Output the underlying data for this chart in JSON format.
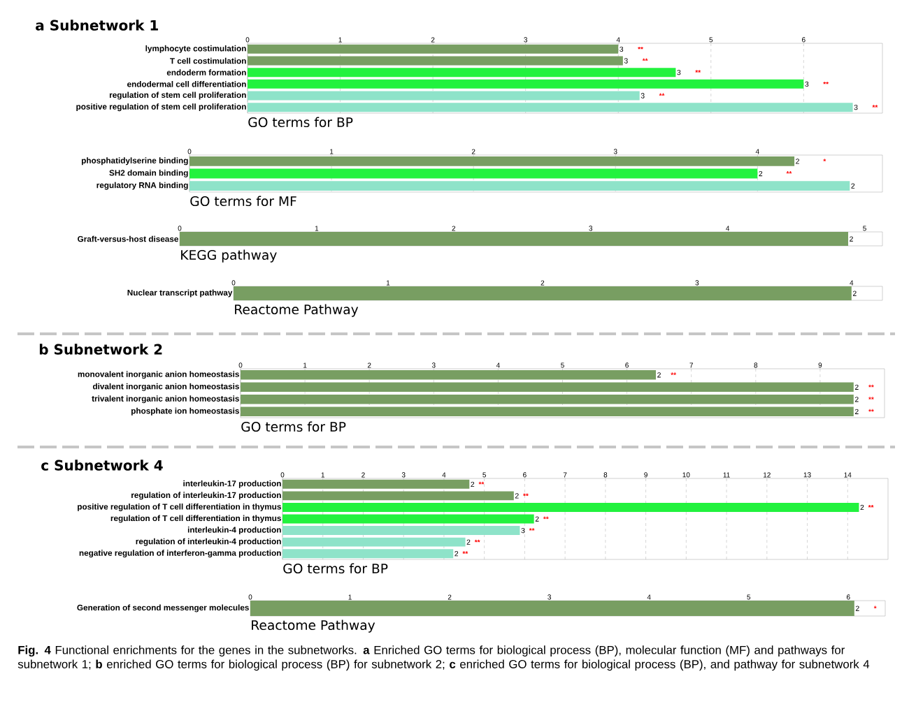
{
  "chart_data": [
    {
      "type": "bar",
      "orientation": "horizontal",
      "title": "a Subnetwork 1",
      "xlabel": "GO terms for BP",
      "categories": [
        "lymphocyte costimulation",
        "T cell costimulation",
        "endoderm formation",
        "endodermal cell differentiation",
        "regulation of stem cell proliferation",
        "positive regulation of stem cell proliferation"
      ],
      "values": [
        4.0,
        4.05,
        4.62,
        6.0,
        4.23,
        6.53
      ],
      "colors": [
        "#789e62",
        "#789e62",
        "#22f23e",
        "#22f23e",
        "#8ee3c9",
        "#8ee3c9"
      ],
      "xlim": [
        0,
        6.85
      ],
      "xticks": [
        0,
        1,
        2,
        3,
        4,
        5,
        6
      ],
      "grid": "x",
      "annotations": [
        {
          "text": "3",
          "x": 4.0,
          "y": "lymphocyte costimulation"
        },
        {
          "text": "3",
          "x": 4.05,
          "y": "T cell costimulation"
        },
        {
          "text": "3",
          "x": 4.62,
          "y": "endoderm formation"
        },
        {
          "text": "3",
          "x": 6.0,
          "y": "endodermal cell differentiation"
        },
        {
          "text": "3",
          "x": 4.23,
          "y": "regulation of stem cell proliferation"
        },
        {
          "text": "3",
          "x": 6.53,
          "y": "positive regulation of stem cell proliferation"
        },
        "**",
        "**",
        "**",
        "**",
        "**",
        "**"
      ]
    },
    {
      "type": "bar",
      "orientation": "horizontal",
      "xlabel": "GO terms for MF",
      "categories": [
        "phosphatidylserine binding",
        "SH2 domain binding",
        "regulatory RNA binding"
      ],
      "values": [
        4.26,
        4.0,
        4.65
      ],
      "colors": [
        "#789e62",
        "#22f23e",
        "#8ee3c9"
      ],
      "xlim": [
        0,
        4.88
      ],
      "xticks": [
        0,
        1,
        2,
        3,
        4
      ],
      "grid": "x",
      "annotations": [
        {
          "text": "2",
          "x": 4.26,
          "y": "phosphatidylserine binding"
        },
        {
          "text": "2",
          "x": 4.0,
          "y": "SH2 domain binding"
        },
        {
          "text": "2",
          "x": 4.65,
          "y": "regulatory RNA binding"
        },
        "*",
        "**"
      ]
    },
    {
      "type": "bar",
      "orientation": "horizontal",
      "xlabel": "KEGG pathway",
      "categories": [
        "Graft-versus-host disease"
      ],
      "values": [
        4.88
      ],
      "colors": [
        "#789e62"
      ],
      "xlim": [
        0,
        5.13
      ],
      "xticks": [
        0,
        1,
        2,
        3,
        4,
        5
      ],
      "grid": false,
      "annotations": [
        {
          "text": "2",
          "x": 4.88,
          "y": "Graft-versus-host disease"
        }
      ]
    },
    {
      "type": "bar",
      "orientation": "horizontal",
      "xlabel": "Reactome Pathway",
      "categories": [
        "Nuclear transcript pathway"
      ],
      "values": [
        4.0
      ],
      "colors": [
        "#789e62"
      ],
      "xlim": [
        0,
        4.2
      ],
      "xticks": [
        0,
        1,
        2,
        3,
        4
      ],
      "grid": false,
      "annotations": [
        {
          "text": "2",
          "x": 4.0,
          "y": "Nuclear transcript pathway"
        }
      ]
    },
    {
      "type": "bar",
      "orientation": "horizontal",
      "title": "b Subnetwork 2",
      "xlabel": "GO terms for BP",
      "categories": [
        "monovalent inorganic anion homeostasis",
        "divalent inorganic anion homeostasis",
        "trivalent inorganic anion homeostasis",
        "phosphate ion homeostasis"
      ],
      "values": [
        6.45,
        9.52,
        9.52,
        9.52
      ],
      "colors": [
        "#789e62",
        "#789e62",
        "#789e62",
        "#789e62"
      ],
      "xlim": [
        0,
        10.0
      ],
      "xticks": [
        0,
        1,
        2,
        3,
        4,
        5,
        6,
        7,
        8,
        9
      ],
      "grid": "x",
      "annotations": [
        {
          "text": "2",
          "x": 6.45,
          "y": "monovalent inorganic anion homeostasis"
        },
        {
          "text": "2",
          "x": 9.52,
          "y": "divalent inorganic anion homeostasis"
        },
        {
          "text": "2",
          "x": 9.52,
          "y": "trivalent inorganic anion homeostasis"
        },
        {
          "text": "2",
          "x": 9.52,
          "y": "phosphate ion homeostasis"
        },
        "**",
        "**",
        "**",
        "**"
      ]
    },
    {
      "type": "bar",
      "orientation": "horizontal",
      "title": "c Subnetwork 4",
      "xlabel": "GO terms for BP",
      "categories": [
        "interleukin-17 production",
        "regulation of interleukin-17 production",
        "positive regulation of T cell differentiation in thymus",
        "regulation of T cell differentiation in thymus",
        "interleukin-4 production",
        "regulation of interleukin-4 production",
        "negative regulation of interferon-gamma production"
      ],
      "values": [
        4.63,
        5.73,
        14.28,
        6.23,
        5.88,
        4.53,
        4.23
      ],
      "colors": [
        "#789e62",
        "#789e62",
        "#22f23e",
        "#22f23e",
        "#8ee3c9",
        "#8ee3c9",
        "#8ee3c9"
      ],
      "xlim": [
        0,
        15.0
      ],
      "xticks": [
        0,
        1,
        2,
        3,
        4,
        5,
        6,
        7,
        8,
        9,
        10,
        11,
        12,
        13,
        14
      ],
      "grid": "x",
      "annotations": [
        {
          "text": "2",
          "x": 4.63,
          "y": "interleukin-17 production"
        },
        {
          "text": "2",
          "x": 5.73,
          "y": "regulation of interleukin-17 production"
        },
        {
          "text": "2",
          "x": 14.28,
          "y": "positive regulation of T cell differentiation in thymus"
        },
        {
          "text": "2",
          "x": 6.23,
          "y": "regulation of T cell differentiation in thymus"
        },
        {
          "text": "3",
          "x": 5.88,
          "y": "interleukin-4 production"
        },
        {
          "text": "2",
          "x": 4.53,
          "y": "regulation of interleukin-4 production"
        },
        {
          "text": "2",
          "x": 4.23,
          "y": "negative regulation of interferon-gamma production"
        },
        "**",
        "**",
        "**",
        "**",
        "**",
        "**",
        "**"
      ]
    },
    {
      "type": "bar",
      "orientation": "horizontal",
      "xlabel": "Reactome Pathway",
      "categories": [
        "Generation of second messenger molecules"
      ],
      "values": [
        6.06
      ],
      "colors": [
        "#789e62"
      ],
      "xlim": [
        0,
        6.37
      ],
      "xticks": [
        0,
        1,
        2,
        3,
        4,
        5,
        6
      ],
      "grid": false,
      "annotations": [
        {
          "text": "2",
          "x": 6.06,
          "y": "Generation of second messenger molecules"
        },
        "*",
        "**Fig. 4**  Functional enrichments for the genes in the subnetworks. **a** Enriched GO terms for biological process (BP), molecular function (MF) and pathways for subnetwork 1; **b** enriched GO terms for biological process (BP) for subnetwork 2; **c** enriched GO terms for biological process (BP), and pathway for subnetwork 4"
      ]
    }
  ]
}
